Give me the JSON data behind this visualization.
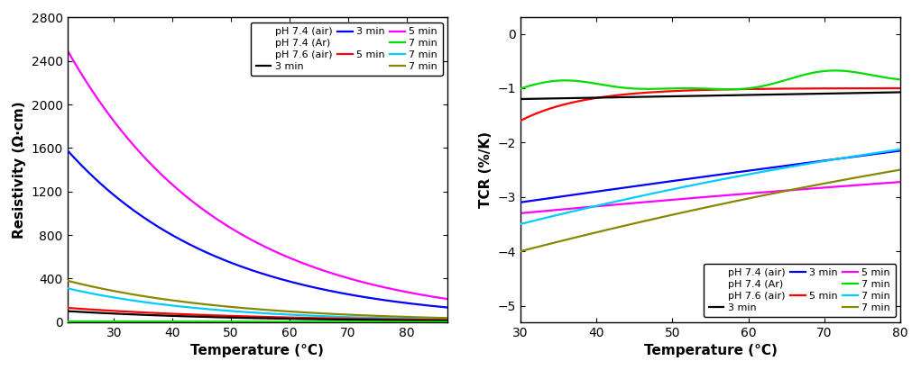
{
  "left_xlim": [
    22,
    87
  ],
  "left_ylim": [
    0,
    2800
  ],
  "left_yticks": [
    0,
    400,
    800,
    1200,
    1600,
    2000,
    2400,
    2800
  ],
  "left_xticks": [
    30,
    40,
    50,
    60,
    70,
    80
  ],
  "left_xlabel": "Temperature (°C)",
  "left_ylabel": "Resistivity (Ω·cm)",
  "right_xlim": [
    30,
    80
  ],
  "right_ylim": [
    -5.3,
    0.3
  ],
  "right_yticks": [
    0,
    -1,
    -2,
    -3,
    -4,
    -5
  ],
  "right_xticks": [
    30,
    40,
    50,
    60,
    70,
    80
  ],
  "right_xlabel": "Temperature (°C)",
  "right_ylabel": "TCR (%/K)",
  "colors": {
    "black": "#000000",
    "red": "#ff0000",
    "green": "#00dd00",
    "blue": "#0000ff",
    "cyan": "#00ccff",
    "magenta": "#ff00ff",
    "olive": "#888800"
  }
}
